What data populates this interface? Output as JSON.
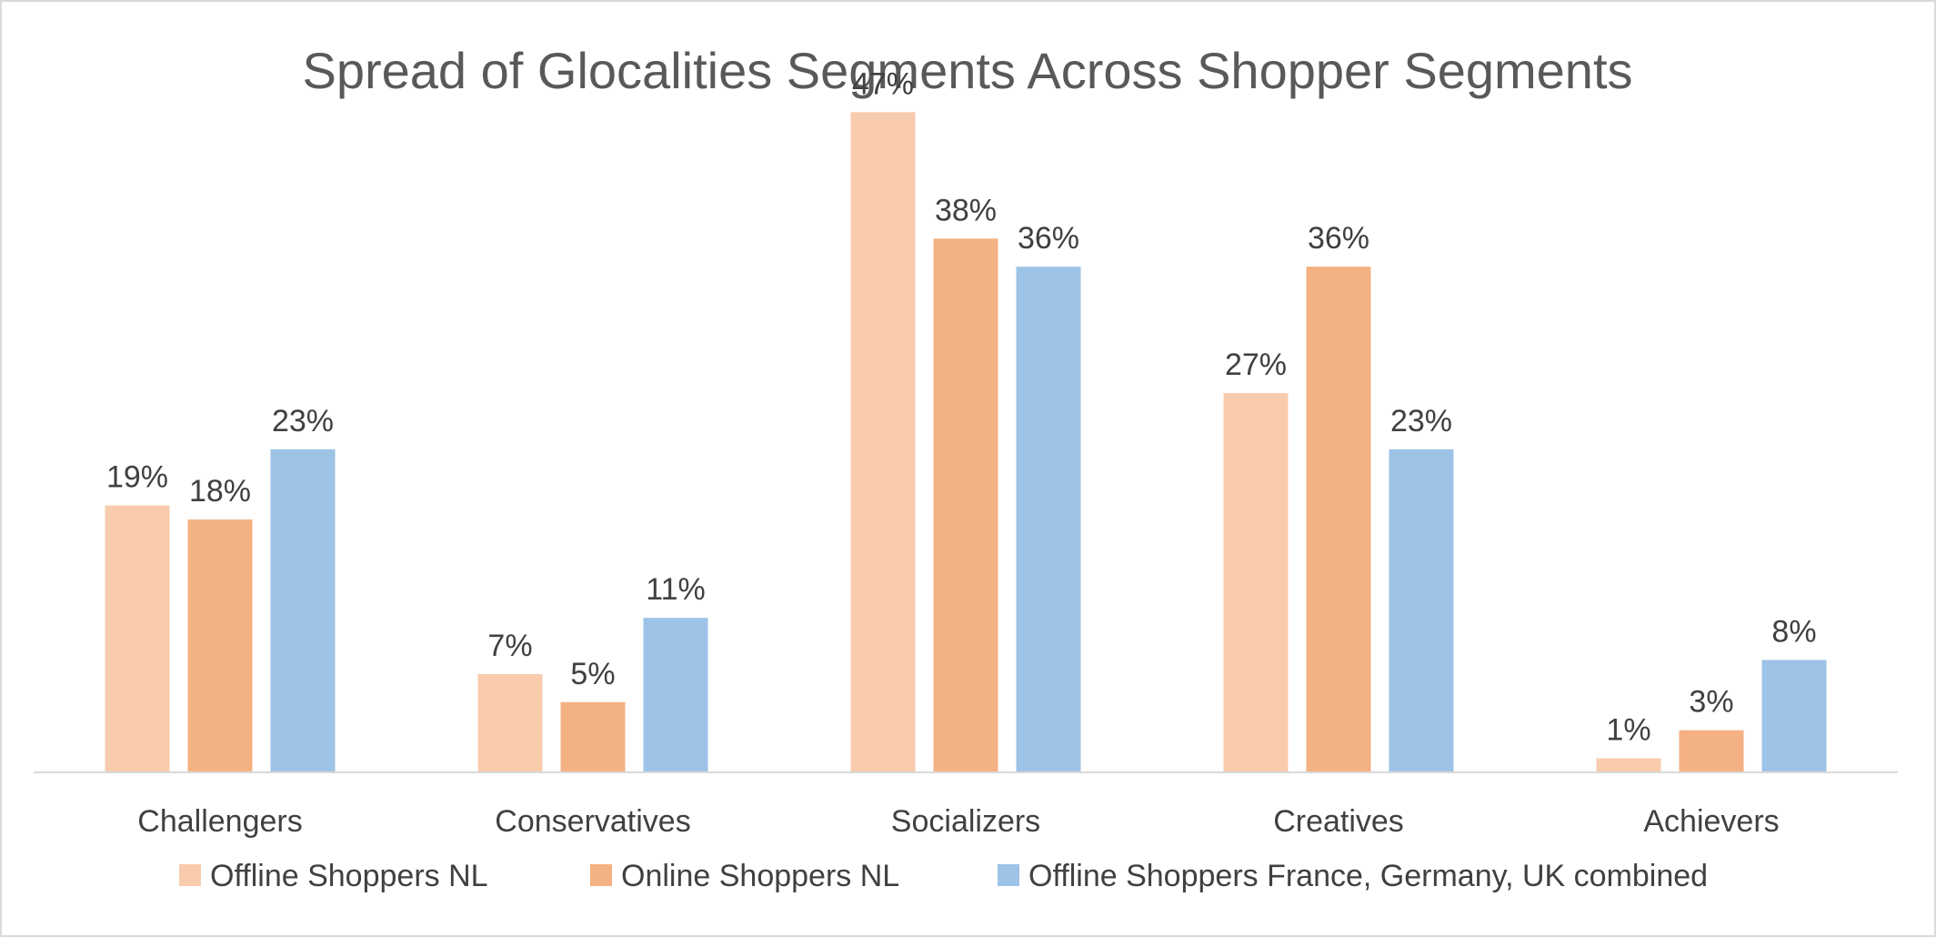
{
  "chart_data": {
    "type": "bar",
    "title": "Spread of Glocalities Segments Across Shopper Segments",
    "categories": [
      "Challengers",
      "Conservatives",
      "Socializers",
      "Creatives",
      "Achievers"
    ],
    "series": [
      {
        "name": "Offline Shoppers NL",
        "color": "#f8cbad",
        "values": [
          19,
          7,
          47,
          27,
          1
        ],
        "labels": [
          "19%",
          "7%",
          "47%",
          "27%",
          "1%"
        ]
      },
      {
        "name": "Online Shoppers NL",
        "color": "#f4b183",
        "values": [
          18,
          5,
          38,
          36,
          3
        ],
        "labels": [
          "18%",
          "5%",
          "38%",
          "36%",
          "3%"
        ]
      },
      {
        "name": "Offline Shoppers France, Germany, UK combined",
        "color": "#9dc3e6",
        "values": [
          23,
          11,
          36,
          23,
          8
        ],
        "labels": [
          "23%",
          "11%",
          "36%",
          "23%",
          "8%"
        ]
      }
    ],
    "ylim": [
      0,
      50
    ],
    "grid": false,
    "legend": "bottom",
    "axis_color": "#d9d9d9"
  }
}
